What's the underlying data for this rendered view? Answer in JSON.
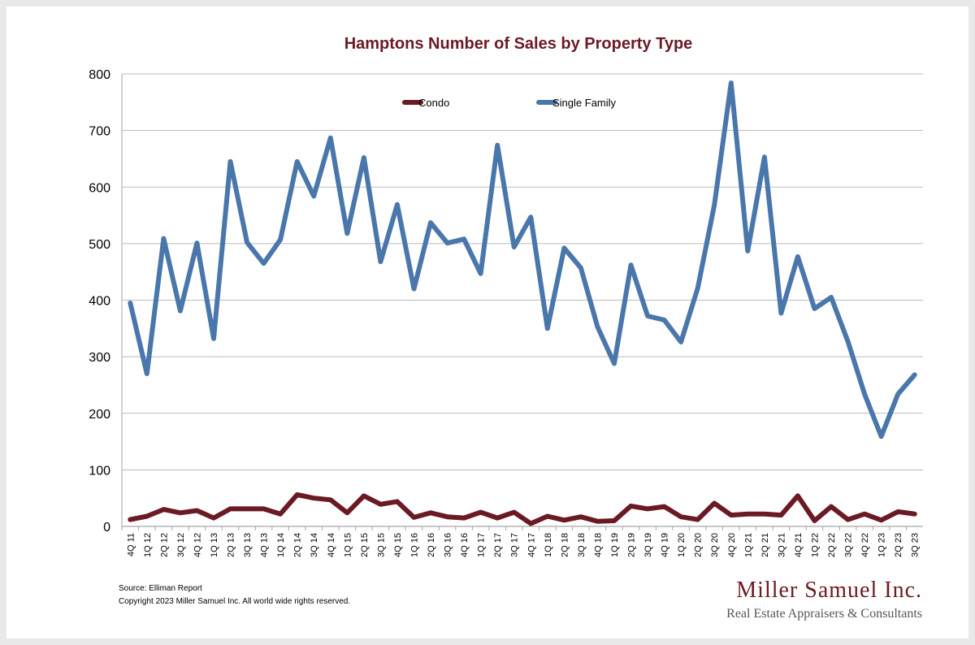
{
  "colors": {
    "condo": "#6b1a24",
    "single_family": "#4a77ab",
    "title": "#6b1a24",
    "grid": "#a6a6a6",
    "brand": "#6b1a24"
  },
  "footer": {
    "source": "Source: Elliman Report",
    "copyright": "Copyright 2023 Miller Samuel Inc.  All world wide rights reserved."
  },
  "brand": {
    "name": "Miller Samuel Inc.",
    "tagline": "Real Estate Appraisers & Consultants"
  },
  "chart_data": {
    "type": "line",
    "title": "Hamptons Number of Sales by Property Type",
    "xlabel": "",
    "ylabel": "",
    "ylim": [
      0,
      800
    ],
    "yticks": [
      0,
      100,
      200,
      300,
      400,
      500,
      600,
      700,
      800
    ],
    "grid": true,
    "legend_position": "top",
    "categories": [
      "4Q 11",
      "1Q 12",
      "2Q 12",
      "3Q 12",
      "4Q 12",
      "1Q 13",
      "2Q 13",
      "3Q 13",
      "4Q 13",
      "1Q 14",
      "2Q 14",
      "3Q 14",
      "4Q 14",
      "1Q 15",
      "2Q 15",
      "3Q 15",
      "4Q 15",
      "1Q 16",
      "2Q 16",
      "3Q 16",
      "4Q 16",
      "1Q 17",
      "2Q 17",
      "3Q 17",
      "4Q 17",
      "1Q 18",
      "2Q 18",
      "3Q 18",
      "4Q 18",
      "1Q 19",
      "2Q 19",
      "3Q 19",
      "4Q 19",
      "1Q 20",
      "2Q 20",
      "3Q 20",
      "4Q 20",
      "1Q 21",
      "2Q 21",
      "3Q 21",
      "4Q 21",
      "1Q 22",
      "2Q 22",
      "3Q 22",
      "4Q 22",
      "1Q 23",
      "2Q 23",
      "3Q 23"
    ],
    "series": [
      {
        "name": "Condo",
        "color": "#6b1a24",
        "values": [
          12,
          18,
          30,
          24,
          28,
          15,
          31,
          31,
          31,
          22,
          56,
          50,
          47,
          24,
          54,
          39,
          44,
          16,
          24,
          17,
          15,
          25,
          15,
          25,
          5,
          18,
          11,
          17,
          9,
          10,
          36,
          31,
          35,
          17,
          12,
          41,
          20,
          22,
          22,
          20,
          54,
          10,
          35,
          12,
          22,
          11,
          26,
          22
        ]
      },
      {
        "name": "Single Family",
        "color": "#4a77ab",
        "values": [
          395,
          270,
          509,
          381,
          501,
          332,
          645,
          502,
          465,
          507,
          645,
          584,
          687,
          518,
          652,
          468,
          569,
          420,
          537,
          501,
          508,
          447,
          674,
          494,
          547,
          350,
          492,
          457,
          353,
          288,
          462,
          372,
          365,
          326,
          421,
          568,
          784,
          487,
          653,
          377,
          477,
          385,
          405,
          327,
          234,
          159,
          234,
          268
        ]
      }
    ]
  }
}
